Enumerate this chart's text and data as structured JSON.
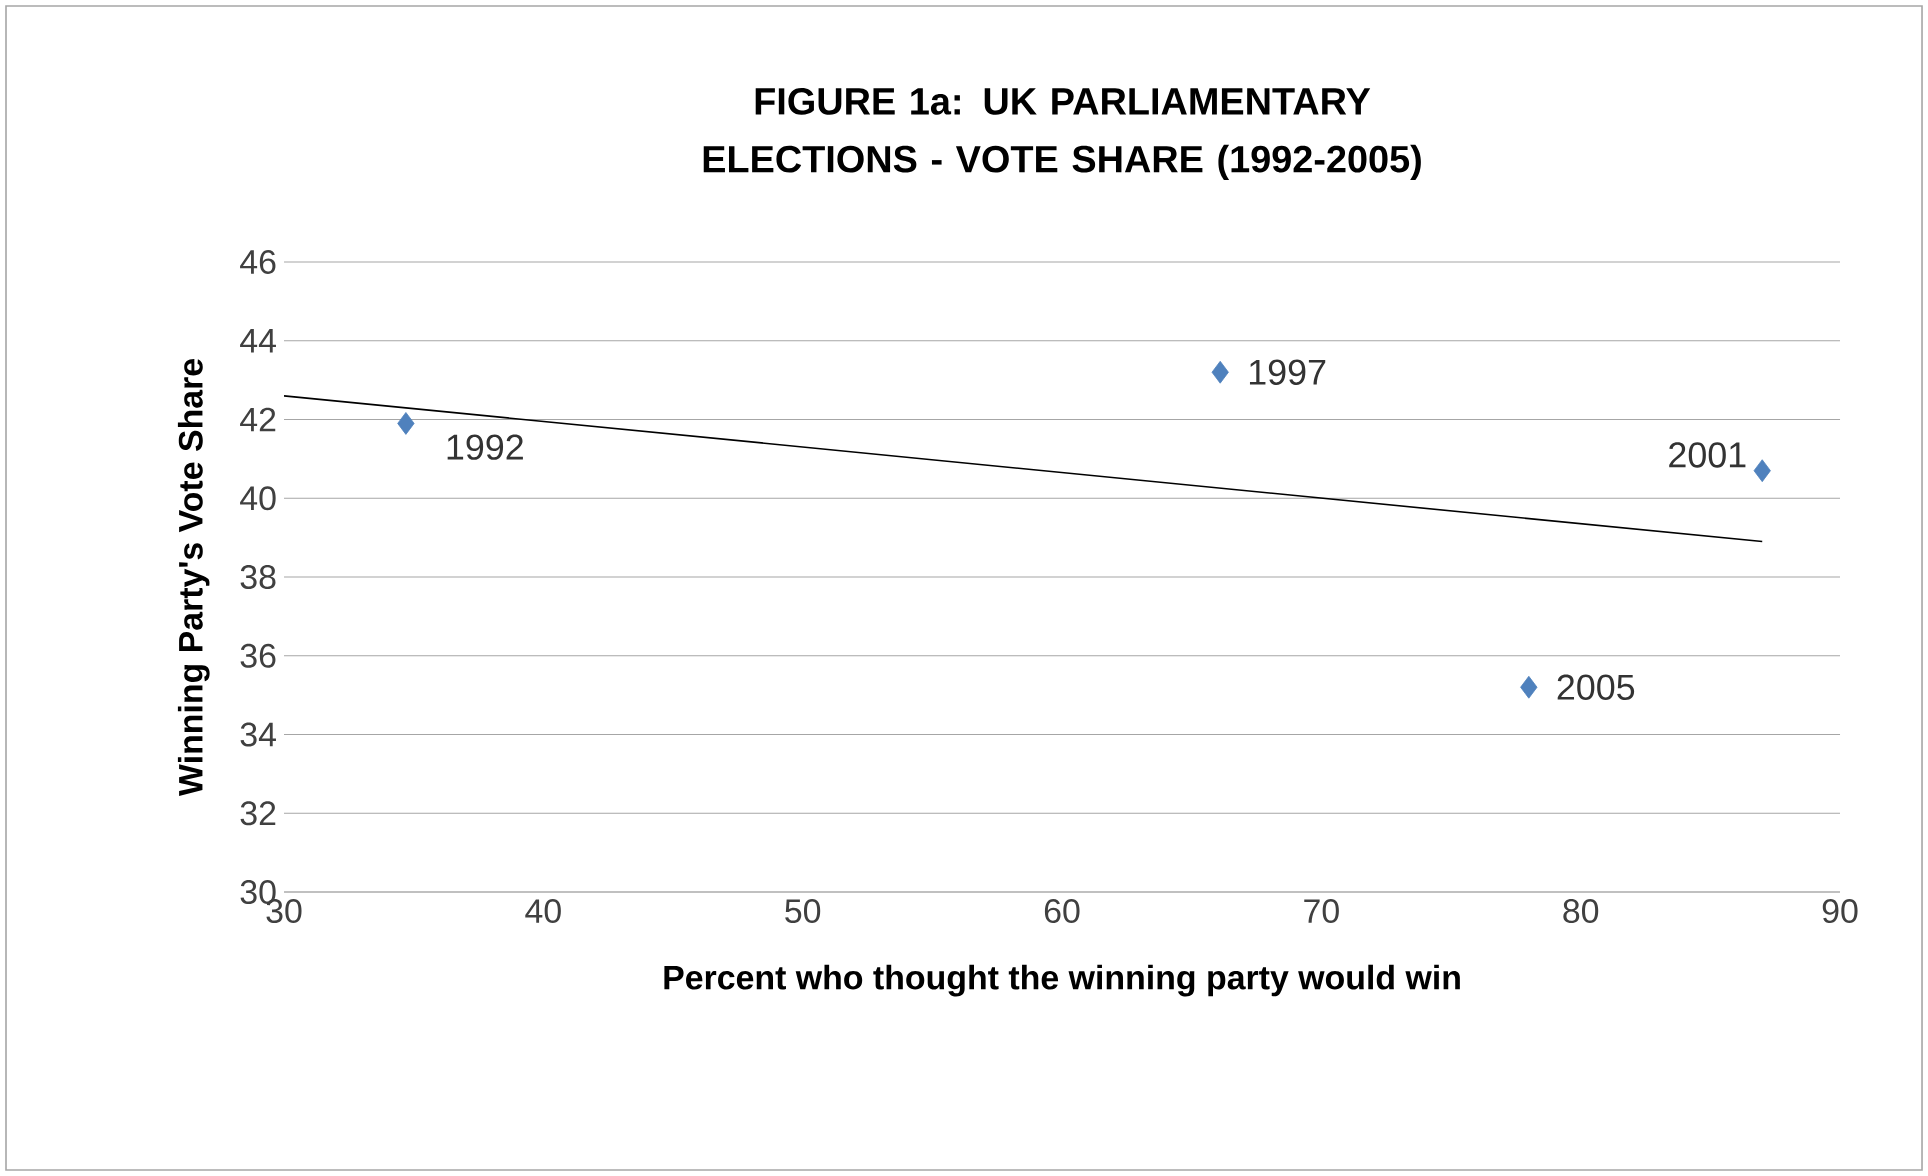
{
  "chart_data": {
    "type": "scatter",
    "title": "FIGURE 1a: UK PARLIAMENTARY ELECTIONS - VOTE SHARE (1992-2005)",
    "xlabel": "Percent who thought the winning party would win",
    "ylabel": "Winning Party's Vote Share",
    "xlim": [
      30,
      90
    ],
    "xticks": [
      30,
      40,
      50,
      60,
      70,
      80,
      90
    ],
    "ylim": [
      30,
      46
    ],
    "yticks": [
      30,
      32,
      34,
      36,
      38,
      40,
      42,
      44,
      46
    ],
    "grid": "y",
    "series": [
      {
        "marker": "diamond",
        "color": "#4f81bd",
        "x": [
          34.7,
          66.1,
          87.0,
          78.0
        ],
        "values": [
          41.9,
          43.2,
          40.7,
          35.2
        ]
      },
      {
        "type": "line",
        "marker": "none",
        "color": "#000000",
        "x": [
          30,
          87
        ],
        "values": [
          42.6,
          38.9
        ]
      }
    ],
    "annotations": [
      {
        "text": "1992",
        "x": 34.7,
        "y": 41.9
      },
      {
        "text": "1997",
        "x": 66.1,
        "y": 43.2
      },
      {
        "text": "2001",
        "x": 87.0,
        "y": 40.7
      },
      {
        "text": "2005",
        "x": 78.0,
        "y": 35.2
      }
    ]
  }
}
